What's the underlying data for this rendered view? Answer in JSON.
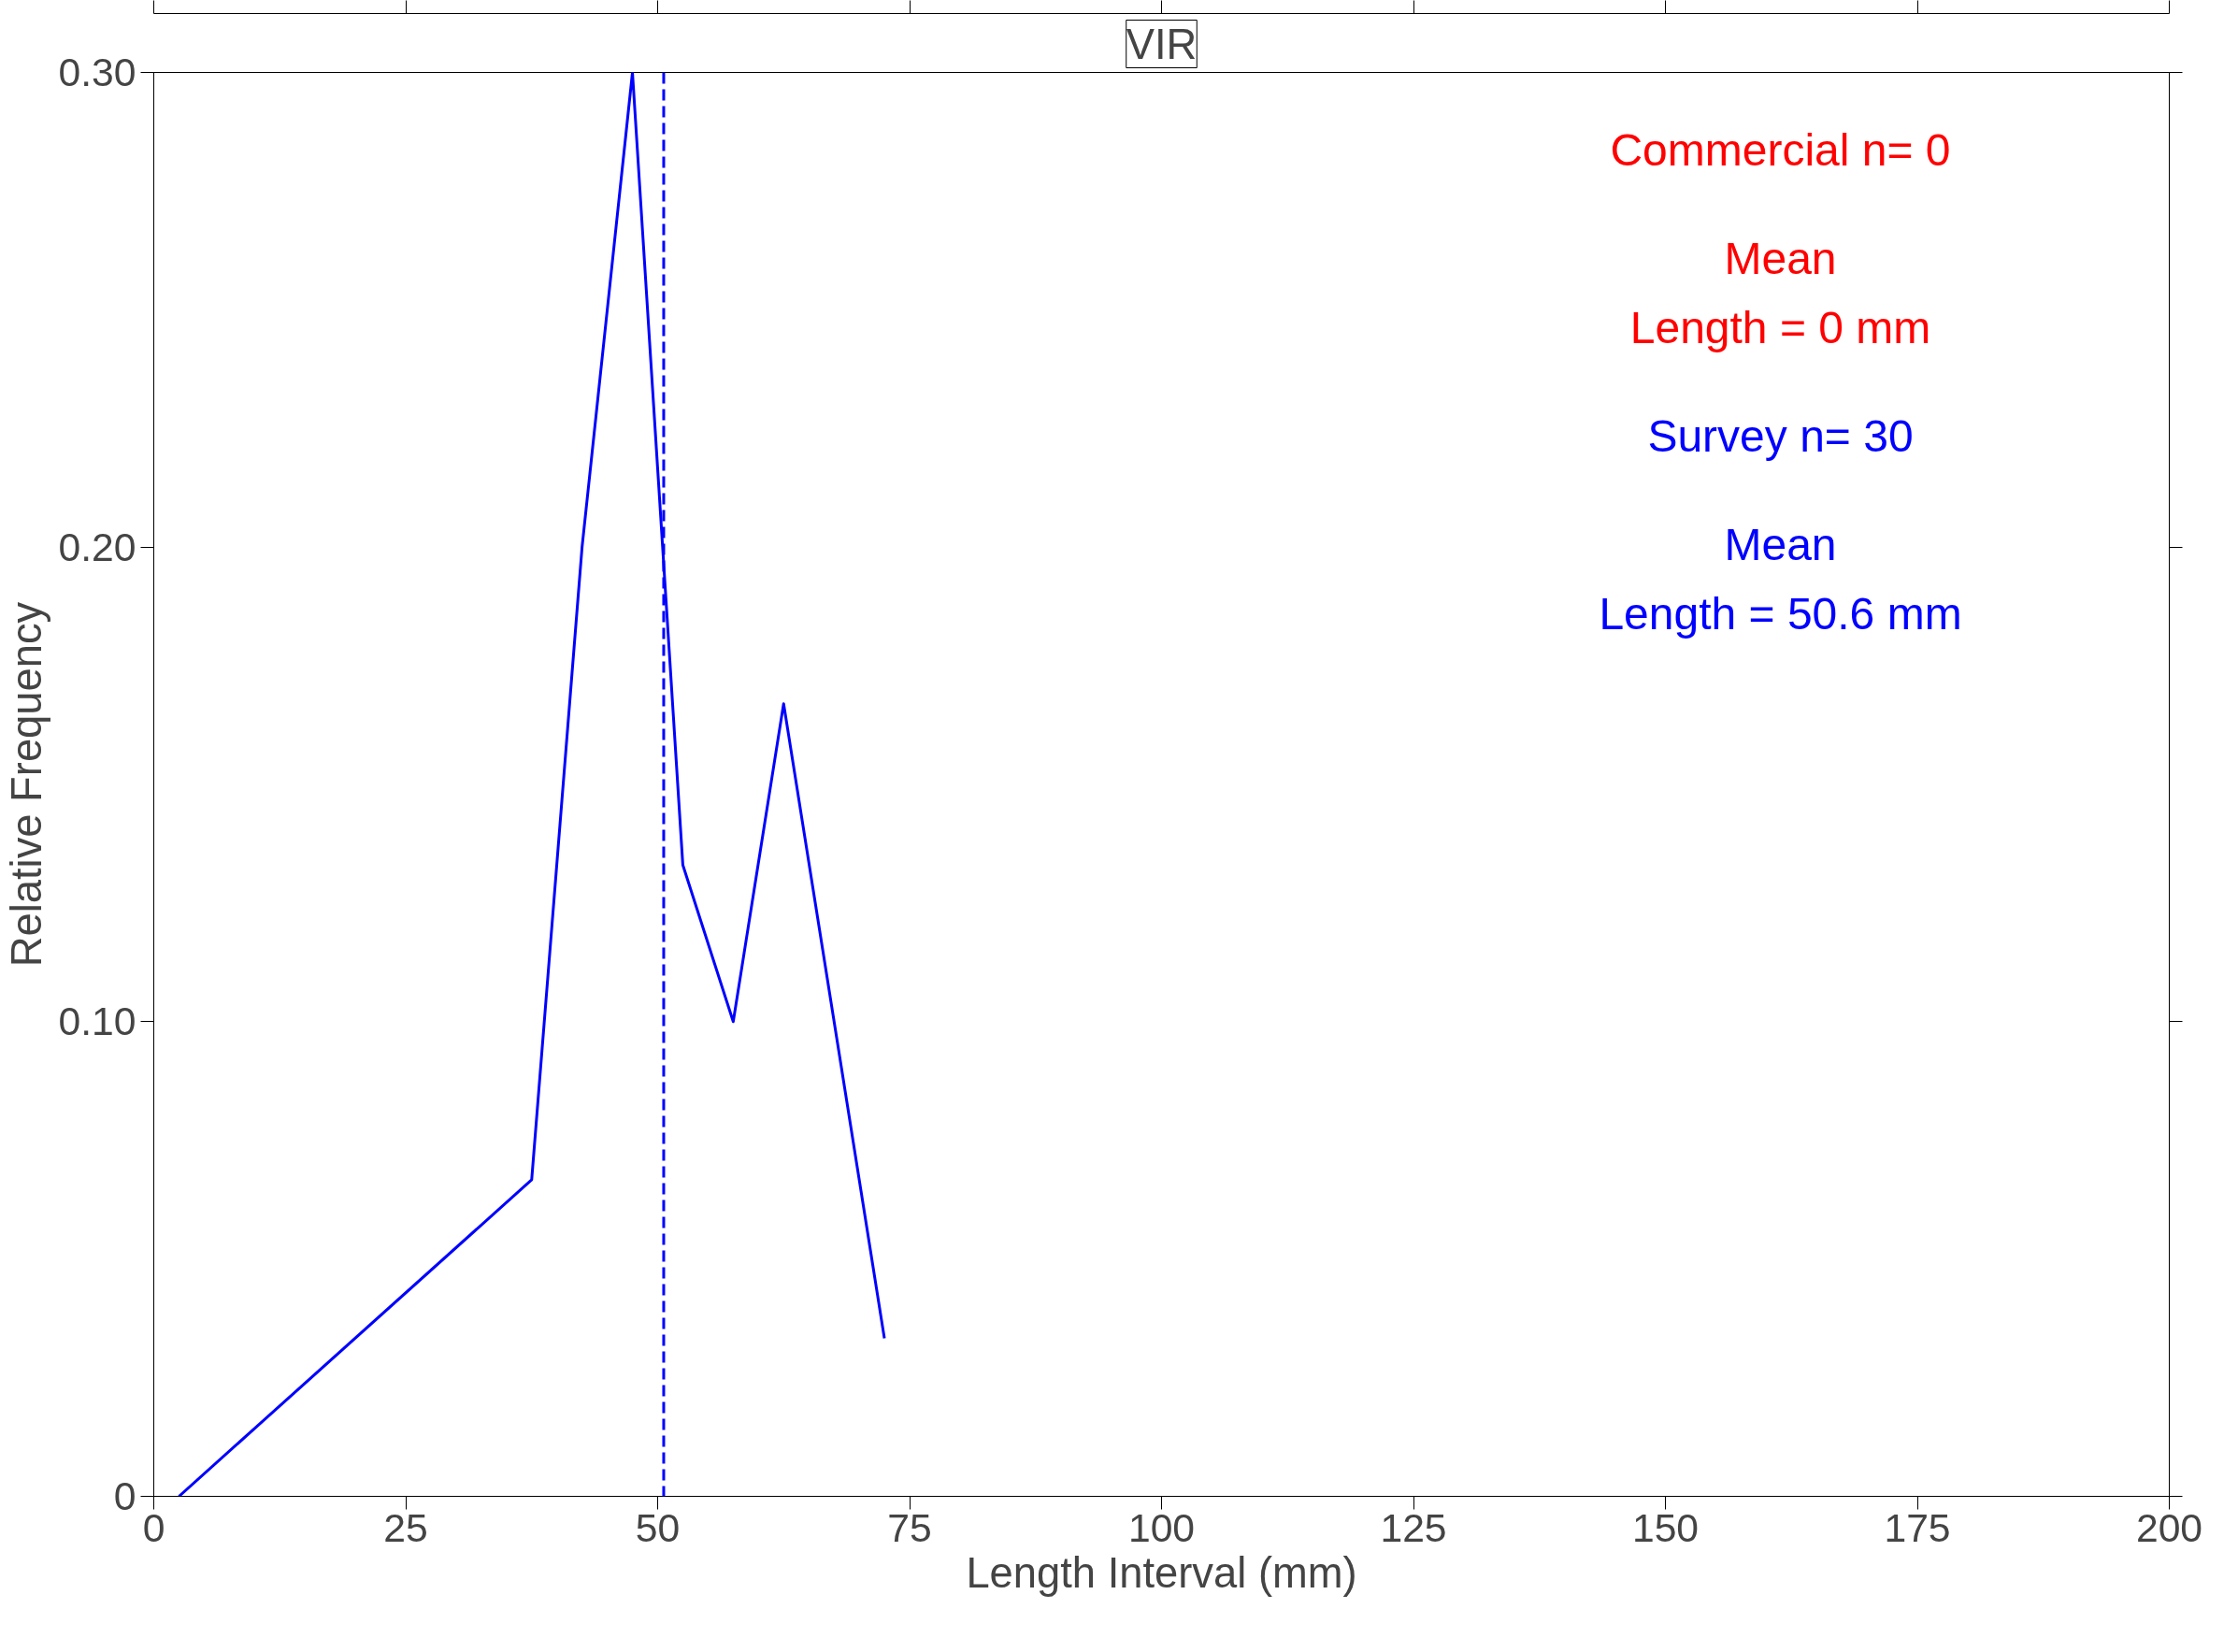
{
  "chart_data": {
    "type": "line",
    "title": "VIR",
    "xlabel": "Length Interval (mm)",
    "ylabel": "Relative Frequency",
    "x": [
      2.5,
      37.5,
      42.5,
      47.5,
      52.5,
      57.5,
      62.5,
      72.5
    ],
    "series": [
      {
        "color": "#ff0000",
        "values": [
          null,
          null,
          null,
          null,
          null,
          null,
          null,
          null
        ]
      },
      {
        "color": "#0000ff",
        "values": [
          0,
          0.0667,
          0.2,
          0.3,
          0.133,
          0.1,
          0.167,
          0.0333
        ]
      }
    ],
    "xlim": [
      0,
      200
    ],
    "xticks": [
      0,
      25,
      50,
      75,
      100,
      125,
      150,
      175,
      200
    ],
    "ylim": [
      0,
      0.3
    ],
    "yticks": [
      {
        "value": 0,
        "label": "0"
      },
      {
        "value": 0.1,
        "label": "0.10"
      },
      {
        "value": 0.2,
        "label": "0.20"
      },
      {
        "value": 0.3,
        "label": "0.30"
      }
    ],
    "ref_lines": [
      {
        "axis": "x",
        "value": 50.6,
        "color": "#0000ff",
        "line_style": "dashed"
      }
    ],
    "annotations": [
      "Commercial n= 0",
      "Mean\nLength = 0 mm",
      "Survey n= 30",
      "Mean\nLength = 50.6 mm"
    ],
    "grid": false,
    "marker": "none",
    "line_style": "solid"
  }
}
